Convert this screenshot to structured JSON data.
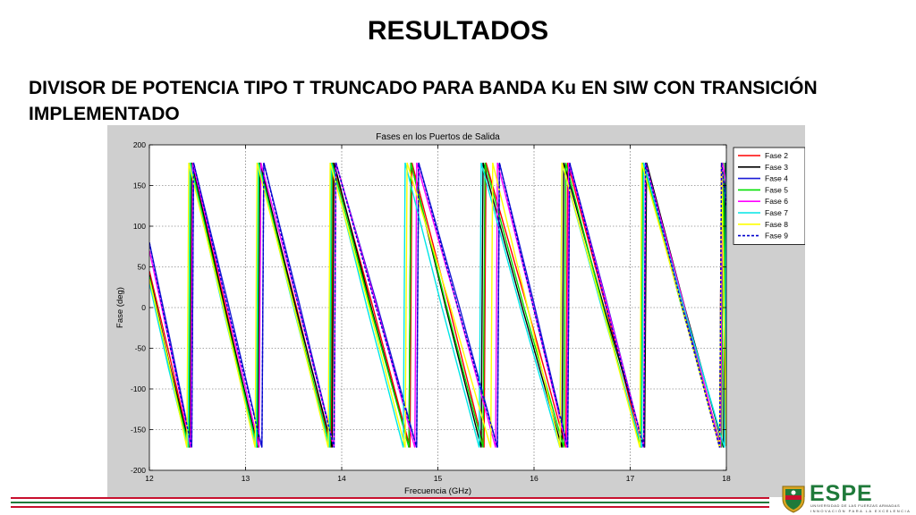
{
  "slide": {
    "title": "RESULTADOS",
    "subtitle": "DIVISOR DE POTENCIA TIPO T TRUNCADO PARA BANDA Ku EN SIW CON TRANSICIÓN IMPLEMENTADO"
  },
  "logo": {
    "name": "ESPE",
    "subtext": "UNIVERSIDAD DE LAS FUERZAS ARMADAS",
    "tagline": "INNOVACIÓN PARA LA EXCELENCIA",
    "colors": {
      "green": "#1f7a3a",
      "red": "#c8102e",
      "gold": "#d9a520"
    }
  },
  "colors": {
    "footer_red": "#c8102e",
    "footer_green": "#1f7a3a"
  },
  "chart_data": {
    "type": "line",
    "title": "Fases en los Puertos de Salida",
    "xlabel": "Frecuencia (GHz)",
    "ylabel": "Fase (deg)",
    "xlim": [
      12,
      18
    ],
    "ylim": [
      -200,
      200
    ],
    "xticks": [
      12,
      13,
      14,
      15,
      16,
      17,
      18
    ],
    "yticks": [
      200,
      150,
      100,
      50,
      0,
      -50,
      -100,
      -150,
      -200
    ],
    "grid": true,
    "legend_position": "top-right",
    "series": [
      {
        "name": "Fase 2",
        "color": "#ff0000",
        "dash": false,
        "wraps": [
          12.42,
          13.12,
          13.89,
          14.71,
          15.48,
          16.33,
          17.12,
          17.93
        ],
        "start": 45,
        "end": -150
      },
      {
        "name": "Fase 3",
        "color": "#000000",
        "dash": false,
        "wraps": [
          12.42,
          13.13,
          13.9,
          14.7,
          15.45,
          16.29,
          17.15,
          17.97
        ],
        "start": 40,
        "end": -170
      },
      {
        "name": "Fase 4",
        "color": "#1a1ad6",
        "dash": false,
        "wraps": [
          12.44,
          13.17,
          13.92,
          14.78,
          15.62,
          16.35,
          17.14,
          17.93
        ],
        "start": 80,
        "end": 125
      },
      {
        "name": "Fase 5",
        "color": "#00e000",
        "dash": false,
        "wraps": [
          12.41,
          13.12,
          13.88,
          14.7,
          15.47,
          16.31,
          17.11,
          17.95
        ],
        "start": 38,
        "end": -150
      },
      {
        "name": "Fase 6",
        "color": "#ff00ff",
        "dash": false,
        "wraps": [
          12.43,
          13.14,
          13.92,
          14.76,
          15.6,
          16.34,
          17.14,
          17.94
        ],
        "start": 70,
        "end": 150
      },
      {
        "name": "Fase 7",
        "color": "#00e6e6",
        "dash": false,
        "wraps": [
          12.4,
          13.11,
          13.87,
          14.64,
          15.43,
          16.27,
          17.12,
          17.98
        ],
        "start": 30,
        "end": 180
      },
      {
        "name": "Fase 8",
        "color": "#ffff00",
        "dash": false,
        "wraps": [
          12.39,
          13.1,
          13.86,
          14.66,
          15.55,
          16.27,
          17.1,
          17.93
        ],
        "start": 35,
        "end": -170
      },
      {
        "name": "Fase 9",
        "color": "#0000cd",
        "dash": true,
        "wraps": [
          12.44,
          13.17,
          13.92,
          14.78,
          15.62,
          16.35,
          17.14,
          17.93
        ],
        "start": 80,
        "end": 125
      }
    ]
  }
}
